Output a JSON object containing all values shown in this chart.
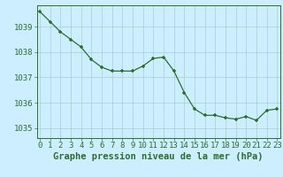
{
  "x": [
    0,
    1,
    2,
    3,
    4,
    5,
    6,
    7,
    8,
    9,
    10,
    11,
    12,
    13,
    14,
    15,
    16,
    17,
    18,
    19,
    20,
    21,
    22,
    23
  ],
  "y": [
    1039.6,
    1039.2,
    1038.8,
    1038.5,
    1038.2,
    1037.7,
    1037.4,
    1037.25,
    1037.25,
    1037.25,
    1037.45,
    1037.75,
    1037.8,
    1037.25,
    1036.4,
    1035.75,
    1035.5,
    1035.5,
    1035.4,
    1035.35,
    1035.45,
    1035.3,
    1035.7,
    1035.75
  ],
  "line_color": "#2d6e2d",
  "marker_color": "#2d6e2d",
  "bg_color": "#cceeff",
  "grid_color": "#a8cece",
  "axis_color": "#2d6e2d",
  "xlabel": "Graphe pression niveau de la mer (hPa)",
  "ylim_min": 1034.6,
  "ylim_max": 1039.85,
  "yticks": [
    1035,
    1036,
    1037,
    1038,
    1039
  ],
  "xticks": [
    0,
    1,
    2,
    3,
    4,
    5,
    6,
    7,
    8,
    9,
    10,
    11,
    12,
    13,
    14,
    15,
    16,
    17,
    18,
    19,
    20,
    21,
    22,
    23
  ],
  "xlabel_fontsize": 7.5,
  "tick_fontsize": 6.5
}
